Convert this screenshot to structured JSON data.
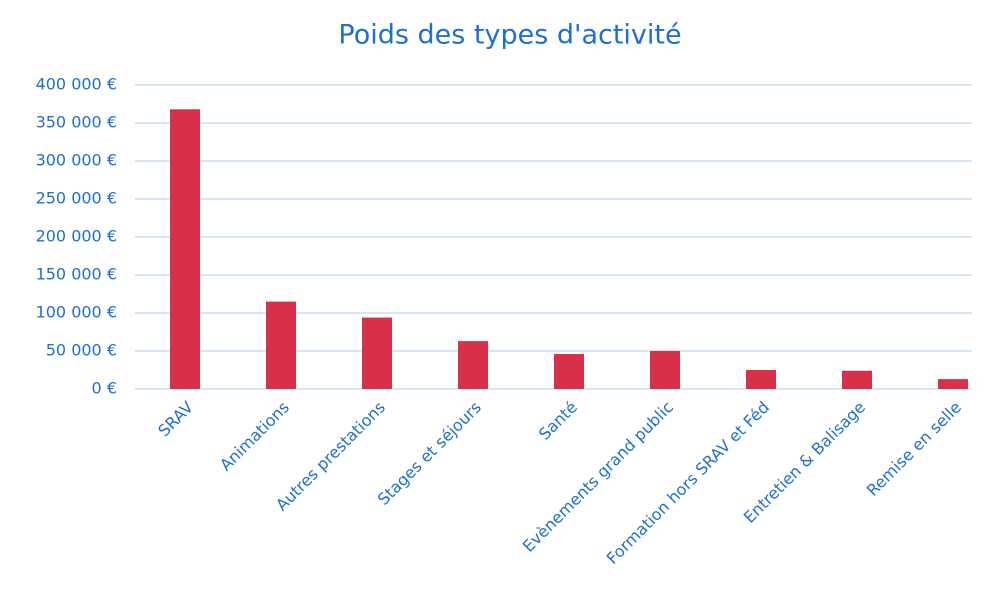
{
  "chart_data": {
    "type": "bar",
    "title": "Poids des types d'activité",
    "categories": [
      "SRAV",
      "Animations",
      "Autres prestations",
      "Stages et séjours",
      "Santé",
      "Evènements grand public",
      "Formation hors SRAV et Féd",
      "Entretien & Balisage",
      "Remise en selle"
    ],
    "values": [
      368000,
      115000,
      94000,
      63000,
      46000,
      50000,
      25000,
      24000,
      13000
    ],
    "color": "#d9304a",
    "ylim": [
      0,
      400000
    ],
    "yticks": [
      {
        "value": 0,
        "label": "0 €"
      },
      {
        "value": 50000,
        "label": "50 000 €"
      },
      {
        "value": 100000,
        "label": "100 000 €"
      },
      {
        "value": 150000,
        "label": "150 000 €"
      },
      {
        "value": 200000,
        "label": "200 000 €"
      },
      {
        "value": 250000,
        "label": "250 000 €"
      },
      {
        "value": 300000,
        "label": "300 000 €"
      },
      {
        "value": 350000,
        "label": "350 000 €"
      },
      {
        "value": 400000,
        "label": "400 000 €"
      }
    ],
    "grid": true
  }
}
